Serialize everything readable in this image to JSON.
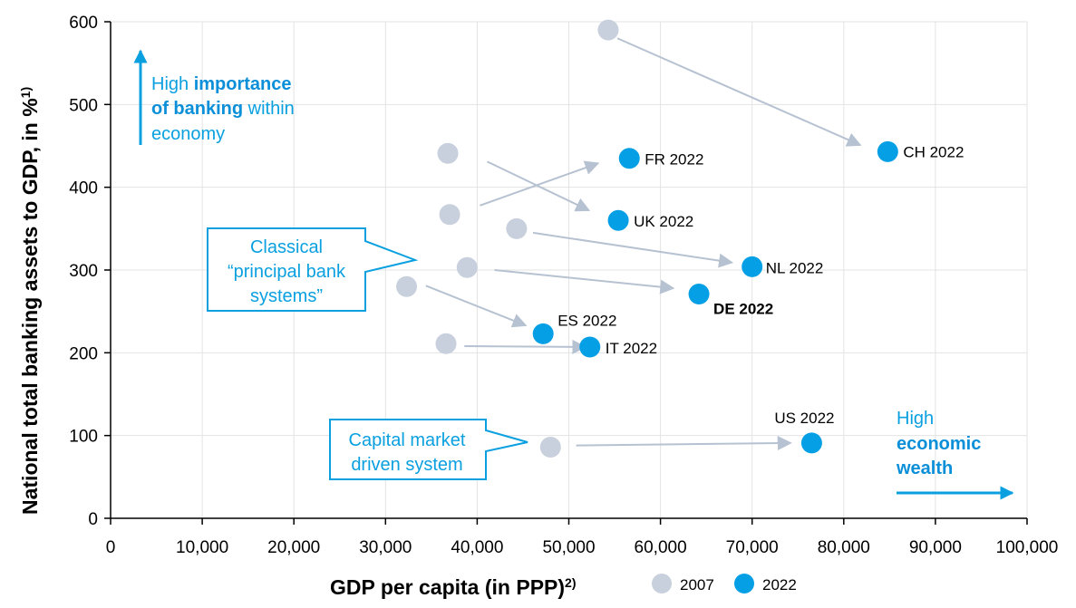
{
  "colors": {
    "dot_2007": "#c7d0dc",
    "dot_2022": "#059fe6",
    "arrow": "#b6c2d1",
    "accent": "#0aa0e0",
    "grid": "#e3e3e3"
  },
  "chart_data": {
    "type": "scatter",
    "xlabel": "GDP per capita (in PPP)",
    "xlabel_sup": "2)",
    "ylabel": "National total banking assets to GDP, in %",
    "ylabel_sup": "1)",
    "xlim": [
      0,
      100000
    ],
    "ylim": [
      0,
      600
    ],
    "x_ticks": [
      0,
      10000,
      20000,
      30000,
      40000,
      50000,
      60000,
      70000,
      80000,
      90000,
      100000
    ],
    "x_tick_labels": [
      "0",
      "10,000",
      "20,000",
      "30,000",
      "40,000",
      "50,000",
      "60,000",
      "70,000",
      "80,000",
      "90,000",
      "100,000"
    ],
    "y_ticks": [
      0,
      100,
      200,
      300,
      400,
      500,
      600
    ],
    "y_tick_labels": [
      "0",
      "100",
      "200",
      "300",
      "400",
      "500",
      "600"
    ],
    "grid": true,
    "legend": [
      {
        "label": "2007",
        "key": "dot_2007"
      },
      {
        "label": "2022",
        "key": "dot_2022"
      }
    ],
    "series": [
      {
        "name": "2007",
        "points": [
          {
            "country": "CH",
            "x": 54300,
            "y": 590
          },
          {
            "country": "FR",
            "x": 37000,
            "y": 367
          },
          {
            "country": "UK",
            "x": 36800,
            "y": 441
          },
          {
            "country": "NL",
            "x": 44300,
            "y": 350
          },
          {
            "country": "DE",
            "x": 38900,
            "y": 303
          },
          {
            "country": "ES",
            "x": 32300,
            "y": 280
          },
          {
            "country": "IT",
            "x": 36600,
            "y": 211
          },
          {
            "country": "US",
            "x": 48000,
            "y": 86
          }
        ]
      },
      {
        "name": "2022",
        "points": [
          {
            "country": "CH",
            "x": 84800,
            "y": 443,
            "label": "CH 2022",
            "bold": false
          },
          {
            "country": "FR",
            "x": 56600,
            "y": 435,
            "label": "FR 2022",
            "bold": false
          },
          {
            "country": "UK",
            "x": 55400,
            "y": 360,
            "label": "UK 2022",
            "bold": false
          },
          {
            "country": "NL",
            "x": 70000,
            "y": 304,
            "label": "NL 2022",
            "bold": false
          },
          {
            "country": "DE",
            "x": 64200,
            "y": 271,
            "label": "DE 2022",
            "bold": true
          },
          {
            "country": "ES",
            "x": 47200,
            "y": 223,
            "label": "ES 2022",
            "bold": false
          },
          {
            "country": "IT",
            "x": 52300,
            "y": 207,
            "label": "IT 2022",
            "bold": false
          },
          {
            "country": "US",
            "x": 76500,
            "y": 91,
            "label": "US 2022",
            "bold": false
          }
        ]
      }
    ],
    "arrows": [
      {
        "from": [
          55300,
          580
        ],
        "to": [
          81800,
          451
        ]
      },
      {
        "from": [
          40300,
          378
        ],
        "to": [
          53200,
          429
        ]
      },
      {
        "from": [
          41100,
          431
        ],
        "to": [
          52200,
          372
        ]
      },
      {
        "from": [
          46100,
          345
        ],
        "to": [
          67800,
          309
        ]
      },
      {
        "from": [
          41900,
          300
        ],
        "to": [
          61400,
          278
        ]
      },
      {
        "from": [
          34400,
          281
        ],
        "to": [
          45300,
          233
        ]
      },
      {
        "from": [
          38600,
          208
        ],
        "to": [
          51800,
          207
        ]
      },
      {
        "from": [
          50800,
          88
        ],
        "to": [
          74200,
          91
        ]
      }
    ],
    "annotations": {
      "banking": {
        "pre": "High ",
        "bold1": "importance",
        "bold2": "of banking",
        "post": " within",
        "line3": "economy"
      },
      "wealth": {
        "line1": "High",
        "bold1": "economic",
        "bold2": "wealth"
      },
      "classical": [
        "Classical",
        "“principal bank",
        "systems”"
      ],
      "capital": [
        "Capital market",
        "driven system"
      ]
    }
  }
}
